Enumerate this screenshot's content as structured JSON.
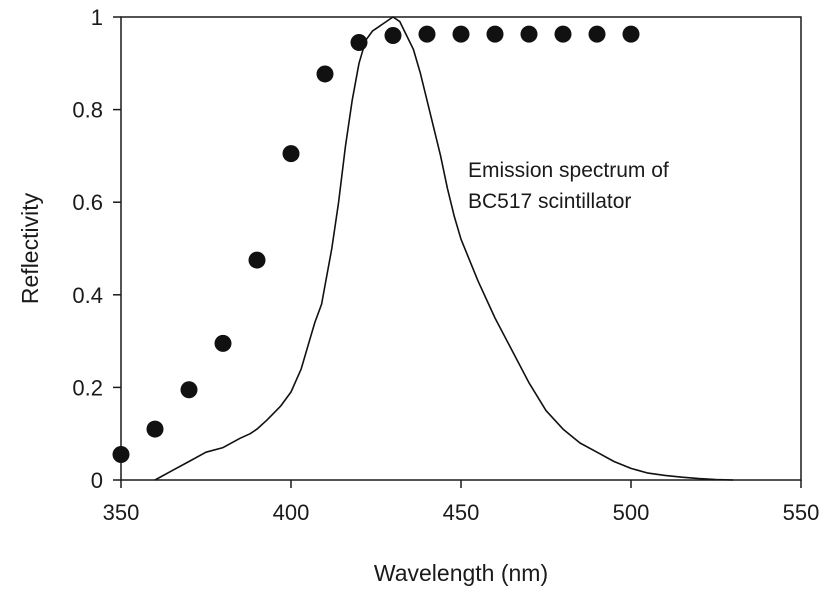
{
  "chart_data": {
    "type": "scatter",
    "xlabel": "Wavelength (nm)",
    "ylabel": "Reflectivity",
    "xlim": [
      350,
      550
    ],
    "ylim": [
      0,
      1
    ],
    "x_ticks": [
      "350",
      "400",
      "450",
      "500",
      "550"
    ],
    "y_ticks": [
      "0",
      "0.2",
      "0.4",
      "0.6",
      "0.8",
      "1"
    ],
    "grid": false,
    "annotation": {
      "line1": "Emission spectrum of",
      "line2": "BC517 scintillator"
    },
    "series": [
      {
        "kind": "points",
        "x": [
          350,
          360,
          370,
          380,
          390,
          400,
          410,
          420,
          430,
          440,
          450,
          460,
          470,
          480,
          490,
          500
        ],
        "y": [
          0.055,
          0.11,
          0.195,
          0.295,
          0.475,
          0.705,
          0.877,
          0.945,
          0.96,
          0.963,
          0.963,
          0.963,
          0.963,
          0.963,
          0.963,
          0.963
        ],
        "color": "#111111"
      },
      {
        "kind": "line",
        "x": [
          360,
          365,
          370,
          375,
          380,
          385,
          388,
          390,
          393,
          397,
          400,
          403,
          405,
          407,
          409,
          410,
          412,
          414,
          416,
          418,
          420,
          422,
          424,
          426,
          428,
          430,
          432,
          434,
          436,
          438,
          440,
          442,
          444,
          446,
          448,
          450,
          455,
          460,
          465,
          470,
          475,
          480,
          485,
          490,
          495,
          500,
          505,
          510,
          515,
          520,
          525,
          530
        ],
        "y": [
          0.0,
          0.02,
          0.04,
          0.06,
          0.07,
          0.09,
          0.1,
          0.11,
          0.13,
          0.16,
          0.19,
          0.24,
          0.29,
          0.34,
          0.38,
          0.42,
          0.5,
          0.6,
          0.72,
          0.82,
          0.9,
          0.95,
          0.97,
          0.98,
          0.99,
          1.0,
          0.99,
          0.96,
          0.93,
          0.88,
          0.82,
          0.76,
          0.7,
          0.63,
          0.57,
          0.52,
          0.43,
          0.35,
          0.28,
          0.21,
          0.15,
          0.11,
          0.08,
          0.06,
          0.04,
          0.025,
          0.015,
          0.01,
          0.006,
          0.003,
          0.001,
          0.0
        ],
        "color": "#111111"
      }
    ]
  }
}
